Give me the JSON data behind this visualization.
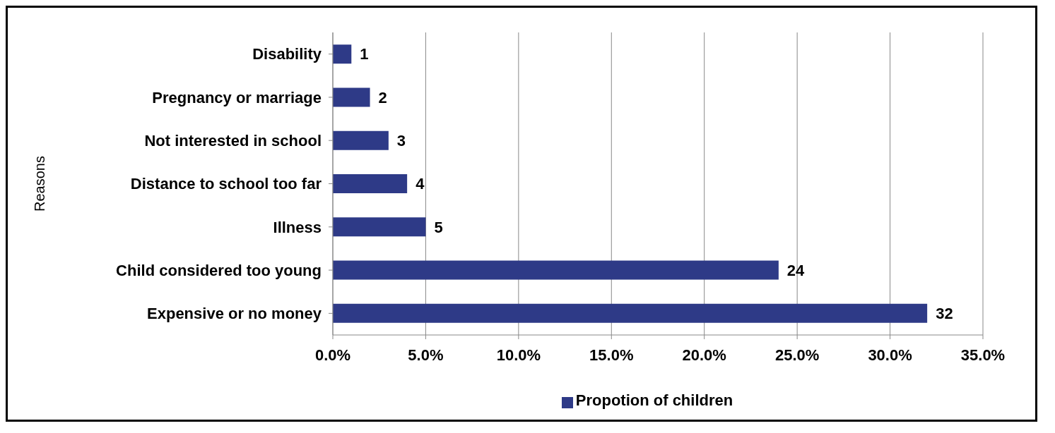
{
  "chart_data": {
    "type": "bar",
    "orientation": "horizontal",
    "ylabel": "Reasons",
    "categories": [
      "Disability",
      "Pregnancy or marriage",
      "Not interested in school",
      "Distance to school too far",
      "Illness",
      "Child considered too young",
      "Expensive or no money"
    ],
    "series": [
      {
        "name": "Propotion of children",
        "color": "#2e3a87",
        "values": [
          1,
          2,
          3,
          4,
          5,
          24,
          32
        ]
      }
    ],
    "xlim": [
      0,
      35
    ],
    "xticks": [
      {
        "value": 0,
        "label": "0.0%"
      },
      {
        "value": 5,
        "label": "5.0%"
      },
      {
        "value": 10,
        "label": "10.0%"
      },
      {
        "value": 15,
        "label": "15.0%"
      },
      {
        "value": 20,
        "label": "20.0%"
      },
      {
        "value": 25,
        "label": "25.0%"
      },
      {
        "value": 30,
        "label": "30.0%"
      },
      {
        "value": 35,
        "label": "35.0%"
      }
    ],
    "data_labels": true,
    "grid": "x",
    "legend": "bottom"
  }
}
